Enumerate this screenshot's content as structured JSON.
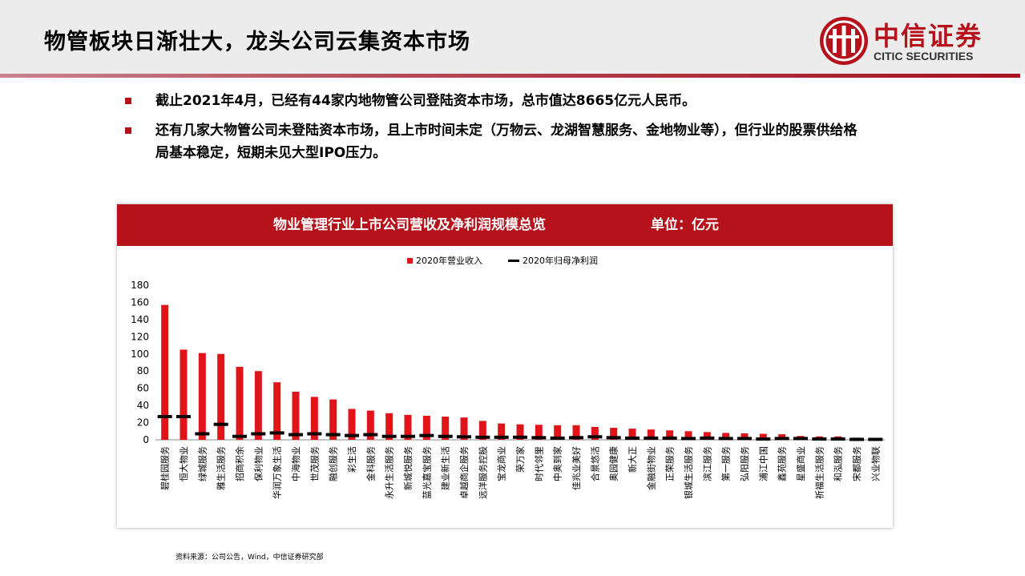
{
  "header": {
    "title": "物管板块日渐壮大，龙头公司云集资本市场",
    "logo_cn": "中信证券",
    "logo_en": "CITIC SECURITIES"
  },
  "bullets": [
    "截止2021年4月，已经有44家内地物管公司登陆资本市场，总市值达8665亿元人民币。",
    "还有几家大物管公司未登陆资本市场，且上市时间未定（万物云、龙湖智慧服务、金地物业等），但行业的股票供给格局基本稳定，短期未见大型IPO压力。"
  ],
  "panel": {
    "title": "物业管理行业上市公司营收及净利润规模总览",
    "unit": "单位：亿元"
  },
  "source": "资料来源：公司公告，Wind，中信证券研究部",
  "colors": {
    "brand_red": "#b5121b",
    "bar_red": "#e1141a",
    "profit_mark": "#000000"
  },
  "chart_data": {
    "type": "bar",
    "title": "",
    "ylim": [
      0,
      180
    ],
    "yticks": [
      0,
      20,
      40,
      60,
      80,
      100,
      120,
      140,
      160,
      180
    ],
    "legend_position": "top",
    "categories": [
      "碧桂园服务",
      "恒大物业",
      "绿城服务",
      "雅生活服务",
      "招商积余",
      "保利物业",
      "华润万象生活",
      "中海物业",
      "世茂服务",
      "融创服务",
      "彩生活",
      "金科服务",
      "永升生活服务",
      "新城悦服务",
      "蓝光嘉宝服务",
      "建业新生活",
      "卓越商企服务",
      "远洋服务控股",
      "宝龙商业",
      "荣万家",
      "时代邻里",
      "中奥到家",
      "佳兆业美好",
      "合景悠活",
      "奥园健康",
      "新大正",
      "金融街物业",
      "正荣服务",
      "银城生活服务",
      "滨江服务",
      "第一服务",
      "弘阳服务",
      "浦江中国",
      "鑫苑服务",
      "星盛商业",
      "祈福生活服务",
      "和泓服务",
      "宋都服务",
      "兴业物联"
    ],
    "series": [
      {
        "name": "2020年营业收入",
        "type": "bar",
        "values": [
          157,
          105,
          101,
          100,
          85,
          80,
          67,
          56,
          50,
          47,
          36,
          34,
          31,
          29,
          28,
          27,
          26,
          22,
          19,
          18,
          17.5,
          17,
          17,
          15,
          14,
          13,
          12,
          11,
          10,
          9,
          8,
          7.5,
          7,
          6.5,
          4.5,
          4,
          4,
          2.5,
          2
        ]
      },
      {
        "name": "2020年归母净利润",
        "type": "marker",
        "values": [
          27,
          27,
          7,
          18,
          4,
          7,
          8,
          6,
          7,
          6,
          5,
          6,
          4,
          4,
          5,
          4,
          3.5,
          3,
          3,
          3,
          2.5,
          2,
          2.5,
          3.5,
          2.5,
          2,
          2,
          2,
          1.5,
          2,
          1.5,
          1.5,
          1,
          1.5,
          1.5,
          1,
          1,
          0.5,
          0.5
        ]
      }
    ]
  }
}
